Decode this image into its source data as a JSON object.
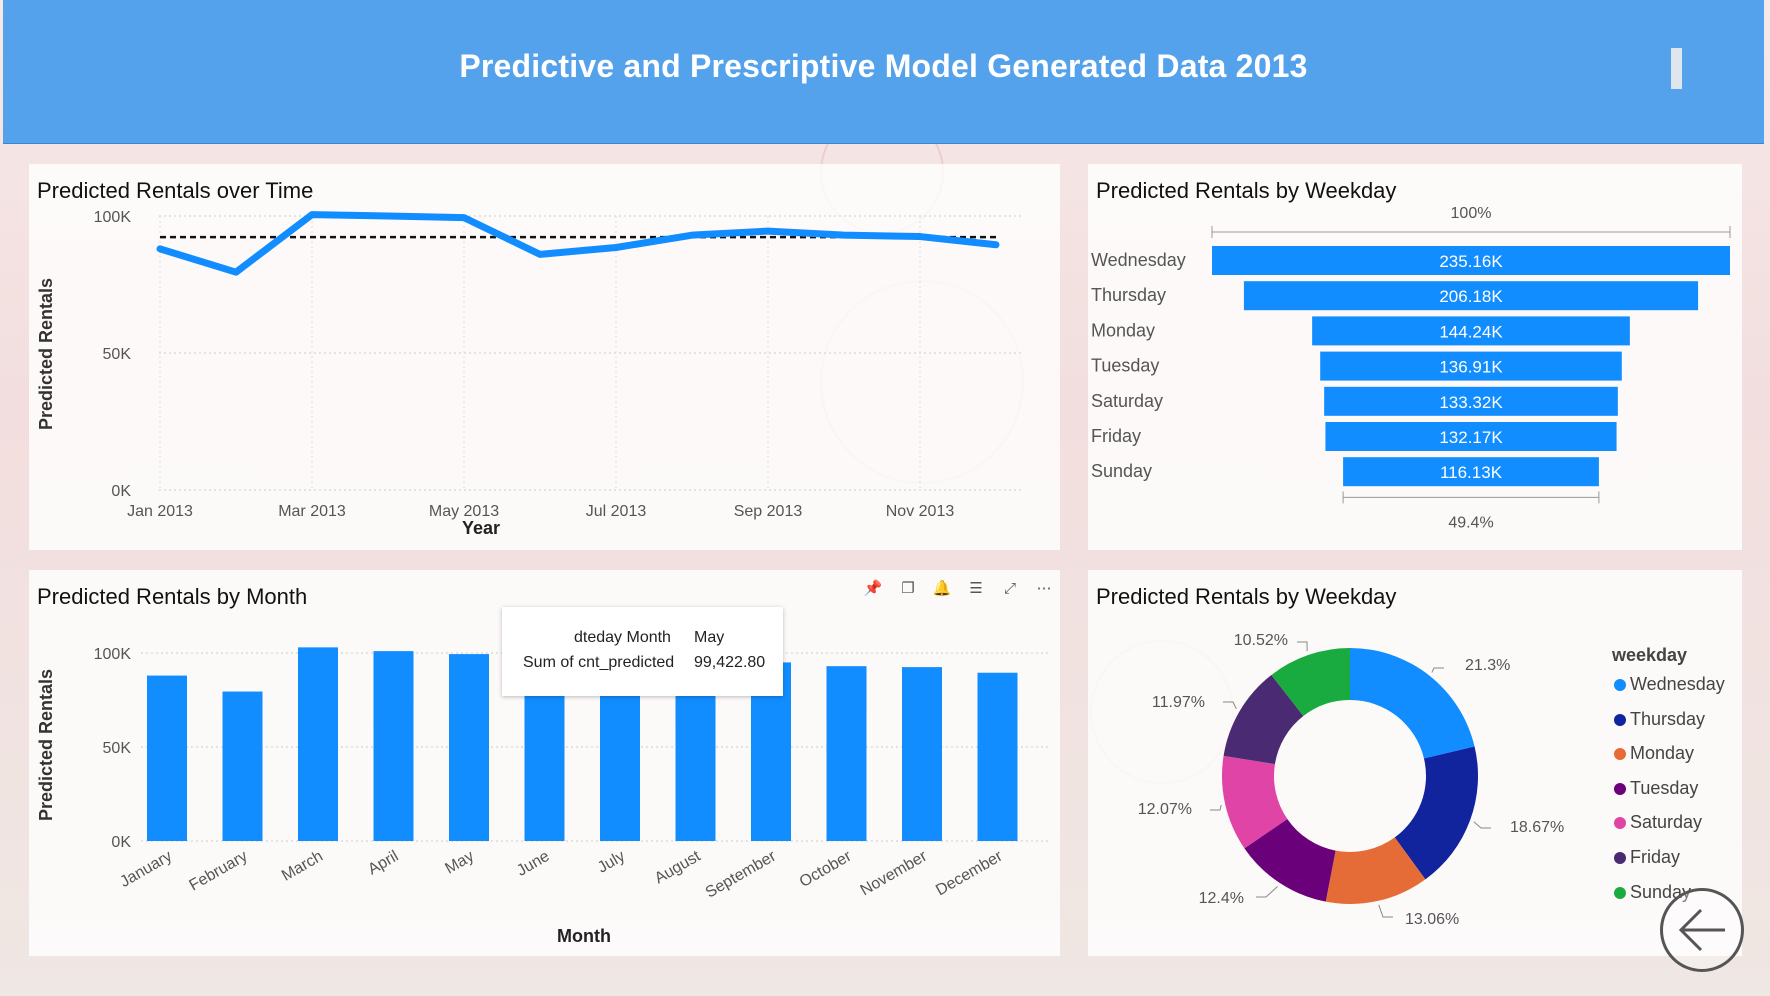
{
  "header": {
    "title": "Predictive and Prescriptive Model Generated Data 2013"
  },
  "line_panel": {
    "title": "Predicted Rentals over Time"
  },
  "funnel_panel": {
    "title": "Predicted Rentals by Weekday",
    "top_pct": "100%",
    "bottom_pct": "49.4%"
  },
  "bar_panel": {
    "title": "Predicted Rentals by Month"
  },
  "donut_panel": {
    "title": "Predicted Rentals by Weekday",
    "legend_title": "weekday"
  },
  "tooltip": {
    "label1": "dteday Month",
    "value1": "May",
    "label2": "Sum of cnt_predicted",
    "value2": "99,422.80"
  },
  "visual_header_icons": [
    "pin-icon",
    "copy-icon",
    "bell-icon",
    "filter-icon",
    "expand-icon",
    "more-icon"
  ],
  "colors": {
    "accent": "#118dff",
    "header": "#55a2ec"
  },
  "chart_data": [
    {
      "type": "line",
      "title": "Predicted Rentals over Time",
      "xlabel": "Year",
      "ylabel": "Predicted Rentals",
      "x_ticks": [
        "Jan 2013",
        "Mar 2013",
        "May 2013",
        "Jul 2013",
        "Sep 2013",
        "Nov 2013"
      ],
      "y_ticks": [
        "0K",
        "50K",
        "100K"
      ],
      "ylim": [
        0,
        100000
      ],
      "x": [
        "Jan 2013",
        "Feb 2013",
        "Mar 2013",
        "Apr 2013",
        "May 2013",
        "Jun 2013",
        "Jul 2013",
        "Aug 2013",
        "Sep 2013",
        "Oct 2013",
        "Nov 2013",
        "Dec 2013"
      ],
      "values": [
        88000,
        79500,
        100500,
        100000,
        99400,
        86000,
        88500,
        93000,
        94500,
        93000,
        92500,
        89500
      ],
      "reference_line": 92300,
      "grid": true
    },
    {
      "type": "bar",
      "subtype": "funnel",
      "title": "Predicted Rentals by Weekday",
      "categories": [
        "Wednesday",
        "Thursday",
        "Monday",
        "Tuesday",
        "Saturday",
        "Friday",
        "Sunday"
      ],
      "values": [
        235160,
        206180,
        144240,
        136910,
        133320,
        132170,
        116130
      ],
      "labels": [
        "235.16K",
        "206.18K",
        "144.24K",
        "136.91K",
        "133.32K",
        "132.17K",
        "116.13K"
      ]
    },
    {
      "type": "bar",
      "title": "Predicted Rentals by Month",
      "xlabel": "Month",
      "ylabel": "Predicted Rentals",
      "categories": [
        "January",
        "February",
        "March",
        "April",
        "May",
        "June",
        "July",
        "August",
        "September",
        "October",
        "November",
        "December"
      ],
      "values": [
        88000,
        79500,
        103000,
        101000,
        99422.8,
        86000,
        88500,
        93000,
        95000,
        93000,
        92500,
        89500
      ],
      "y_ticks": [
        "0K",
        "50K",
        "100K"
      ],
      "ylim": [
        0,
        100000
      ]
    },
    {
      "type": "pie",
      "subtype": "donut",
      "title": "Predicted Rentals by Weekday",
      "legend_position": "right",
      "categories": [
        "Wednesday",
        "Thursday",
        "Monday",
        "Tuesday",
        "Saturday",
        "Friday",
        "Sunday"
      ],
      "values": [
        21.3,
        18.67,
        13.06,
        12.4,
        12.07,
        11.97,
        10.52
      ],
      "labels": [
        "21.3%",
        "18.67%",
        "13.06%",
        "12.4%",
        "12.07%",
        "11.97%",
        "10.52%"
      ],
      "colors": [
        "#118dff",
        "#12239e",
        "#e66c37",
        "#6b007b",
        "#e044a7",
        "#4a2a72",
        "#1aab40"
      ]
    }
  ]
}
